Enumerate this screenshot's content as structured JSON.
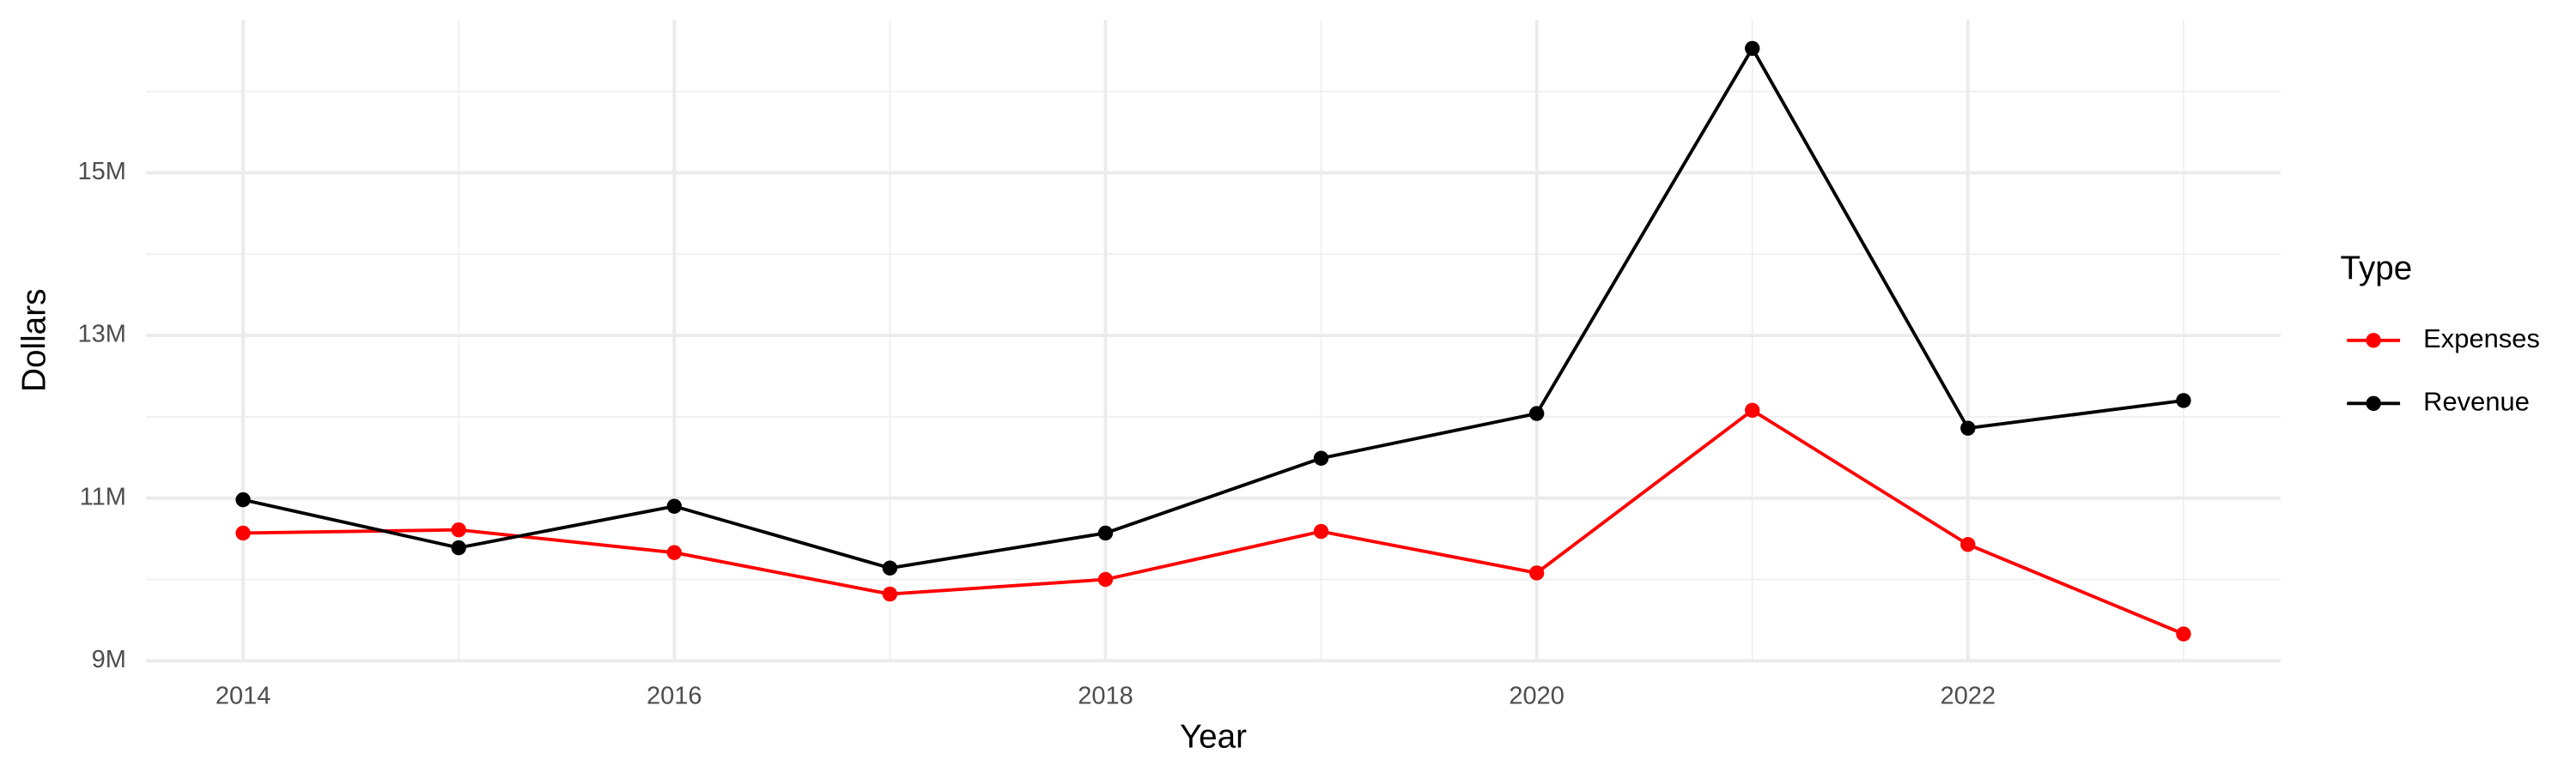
{
  "chart_data": {
    "type": "line",
    "x_label": "Year",
    "y_label": "Dollars",
    "legend_title": "Type",
    "x": [
      2014,
      2015,
      2016,
      2017,
      2018,
      2019,
      2020,
      2021,
      2022,
      2023
    ],
    "series": [
      {
        "name": "Expenses",
        "color": "#ff0000",
        "values": [
          10570000,
          10610000,
          10330000,
          9820000,
          10000000,
          10590000,
          10080000,
          12080000,
          10430000,
          9330000
        ]
      },
      {
        "name": "Revenue",
        "color": "#000000",
        "values": [
          10980000,
          10390000,
          10900000,
          10140000,
          10570000,
          11490000,
          12040000,
          16530000,
          11860000,
          12200000
        ]
      }
    ],
    "xlim": [
      2013.55,
      2023.45
    ],
    "xticks": [
      2014,
      2016,
      2018,
      2020,
      2022
    ],
    "ylim": [
      9000000,
      16880000
    ],
    "yticks": [
      {
        "value": 9000000,
        "label": "9M"
      },
      {
        "value": 11000000,
        "label": "11M"
      },
      {
        "value": 13000000,
        "label": "13M"
      },
      {
        "value": 15000000,
        "label": "15M"
      }
    ],
    "grid": true,
    "legend": "right"
  }
}
